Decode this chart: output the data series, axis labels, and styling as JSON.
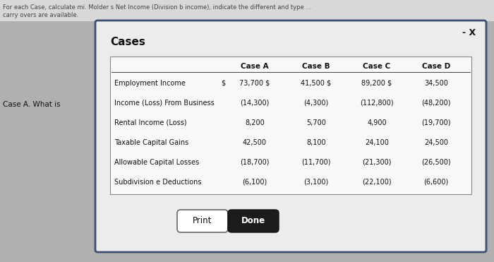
{
  "title": "Cases",
  "header_row": [
    "",
    "Case A",
    "Case B",
    "Case C",
    "Case D"
  ],
  "row_labels": [
    "Employment Income",
    "Income (Loss) From Business",
    "Rental Income (Loss)",
    "Taxable Capital Gains",
    "Allowable Capital Losses",
    "Subdivision e Deductions"
  ],
  "dollar_sign_col": "$",
  "table_data": [
    [
      "73,700 $",
      "41,500 $",
      "89,200 $",
      "34,500"
    ],
    [
      "(14,300)",
      "(4,300)",
      "(112,800)",
      "(48,200)"
    ],
    [
      "8,200",
      "5,700",
      "4,900",
      "(19,700)"
    ],
    [
      "42,500",
      "8,100",
      "24,100",
      "24,500"
    ],
    [
      "(18,700)",
      "(11,700)",
      "(21,300)",
      "(26,500)"
    ],
    [
      "(6,100)",
      "(3,100)",
      "(22,100)",
      "(6,600)"
    ]
  ],
  "outer_bg": "#b0b0b0",
  "top_strip_bg": "#d8d8d8",
  "dialog_bg": "#ececec",
  "dialog_border": "#3a5070",
  "table_bg": "#f8f8f8",
  "table_border": "#888888",
  "header_line_color": "#444444",
  "text_color": "#111111",
  "button_print_bg": "#ffffff",
  "button_done_bg": "#1c1c1c",
  "button_done_text": "#ffffff",
  "button_print_text": "#111111",
  "top_text1": "For each Case, calculate mi. Molder s Net Income (Division b income), indicate the different and type ...",
  "top_text2": "carry overs are available.",
  "side_text": "Case A. What is",
  "minus_x": "- X"
}
